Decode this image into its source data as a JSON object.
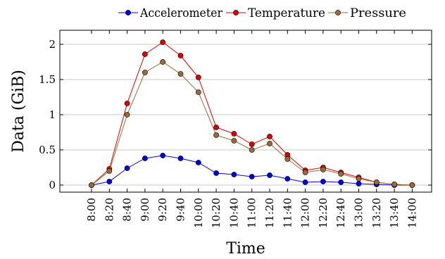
{
  "chart_data": {
    "type": "line",
    "title": "",
    "xlabel": "Time",
    "ylabel": "Data (GiB)",
    "categories": [
      "8:00",
      "8:20",
      "8:40",
      "9:00",
      "9:20",
      "9:40",
      "10:00",
      "10:20",
      "10:40",
      "11:00",
      "11:20",
      "11:40",
      "12:00",
      "12:20",
      "12:40",
      "13:00",
      "13:20",
      "13:40",
      "14:00"
    ],
    "ylim": [
      -0.1,
      2.2
    ],
    "yticks": [
      "0",
      "0.5",
      "1",
      "1.5",
      "2"
    ],
    "grid": "horizontal",
    "legend_position": "top-right",
    "series": [
      {
        "name": "Accelerometer",
        "color": "#0000dd",
        "values": [
          0,
          0.05,
          0.24,
          0.38,
          0.42,
          0.38,
          0.32,
          0.17,
          0.15,
          0.12,
          0.14,
          0.09,
          0.04,
          0.05,
          0.04,
          0.02,
          0.01,
          0.0,
          0.0
        ]
      },
      {
        "name": "Temperature",
        "color": "#dd0000",
        "values": [
          0,
          0.23,
          1.16,
          1.86,
          2.03,
          1.84,
          1.53,
          0.82,
          0.73,
          0.58,
          0.69,
          0.43,
          0.21,
          0.25,
          0.18,
          0.11,
          0.04,
          0.01,
          0.0
        ]
      },
      {
        "name": "Pressure",
        "color": "#9b6a3a",
        "values": [
          0,
          0.2,
          1.0,
          1.6,
          1.75,
          1.58,
          1.32,
          0.71,
          0.63,
          0.5,
          0.59,
          0.37,
          0.18,
          0.22,
          0.16,
          0.09,
          0.04,
          0.01,
          0.0
        ]
      }
    ]
  }
}
